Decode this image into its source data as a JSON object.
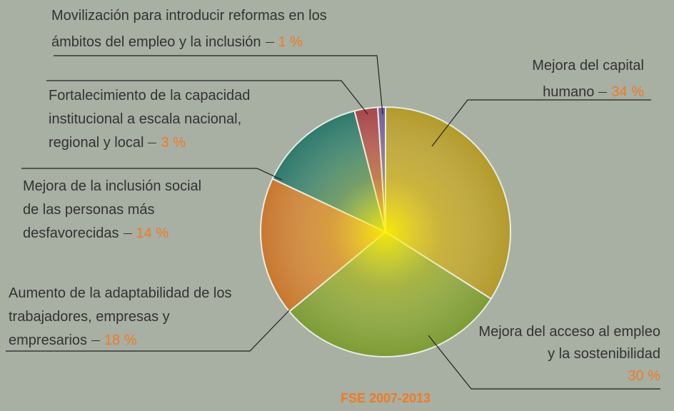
{
  "chart_data": {
    "type": "pie",
    "title": "FSE 2007-2013",
    "categories": [
      "Mejora del capital humano",
      "Mejora del acceso al empleo y la sostenibilidad",
      "Aumento de la adaptabilidad de los trabajadores, empresas y empresarios",
      "Mejora de la inclusión social de las personas más desfavorecidas",
      "Fortalecimiento de la capacidad institucional a escala nacional, regional y local",
      "Movilización para introducir reformas en los ámbitos del empleo y la inclusión"
    ],
    "values": [
      34,
      30,
      18,
      14,
      3,
      1
    ],
    "value_labels": [
      "34 %",
      "30 %",
      "18 %",
      "14 %",
      "3 %",
      "1 %"
    ],
    "colors": [
      "#b39a2a",
      "#7d9c34",
      "#c8782e",
      "#2f7a6c",
      "#a8474a",
      "#6e5c9c"
    ]
  }
}
